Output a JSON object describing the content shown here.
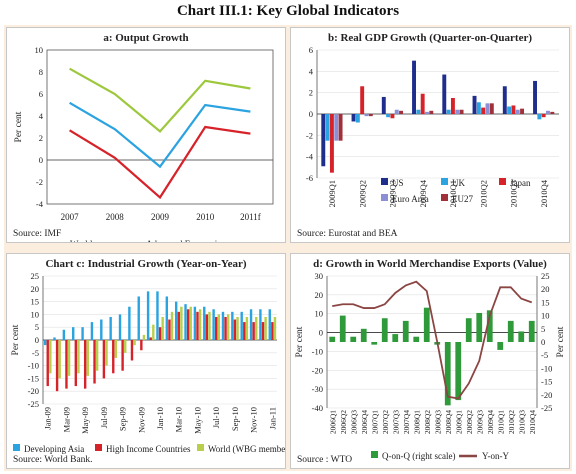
{
  "page_title": "Chart III.1: Key Global Indicators",
  "chart_data": [
    {
      "type": "line",
      "title": "a: Output Growth",
      "ylabel": "Per cent",
      "ylim": [
        -4,
        10
      ],
      "yticks": [
        -4,
        -2,
        0,
        2,
        4,
        6,
        8,
        10
      ],
      "categories": [
        "2007",
        "2008",
        "2009",
        "2010",
        "2011f"
      ],
      "series": [
        {
          "name": "World",
          "color": "#2aa3e0",
          "values": [
            5.2,
            2.8,
            -0.6,
            5.0,
            4.4
          ]
        },
        {
          "name": "Advanced Economies",
          "color": "#d6232a",
          "values": [
            2.7,
            0.2,
            -3.4,
            3.0,
            2.4
          ]
        },
        {
          "name": "Emerging and Developing Economies",
          "color": "#9dc83d",
          "values": [
            8.3,
            6.0,
            2.6,
            7.2,
            6.5
          ]
        }
      ],
      "source": "Source: IMF"
    },
    {
      "type": "bar",
      "title": "b: Real GDP Growth (Quarter-on-Quarter)",
      "ylim": [
        -6,
        6
      ],
      "yticks": [
        -6,
        -4,
        -2,
        0,
        2,
        4,
        6
      ],
      "categories": [
        "2009Q1",
        "2009Q2",
        "2009Q3",
        "2009Q4",
        "2010Q1",
        "2010Q2",
        "2010Q3",
        "2010Q4"
      ],
      "series": [
        {
          "name": "US",
          "color": "#1f2d8c",
          "values": [
            -4.9,
            -0.7,
            1.6,
            5.0,
            3.7,
            1.7,
            2.6,
            3.1
          ]
        },
        {
          "name": "UK",
          "color": "#2aa3e0",
          "values": [
            -2.5,
            -0.8,
            -0.3,
            0.4,
            0.4,
            1.1,
            0.7,
            -0.5
          ]
        },
        {
          "name": "Japan",
          "color": "#d6232a",
          "values": [
            -5.5,
            2.6,
            -0.4,
            1.9,
            1.5,
            0.6,
            0.8,
            -0.3
          ]
        },
        {
          "name": "Euro Area",
          "color": "#8c8fd6",
          "values": [
            -2.5,
            -0.2,
            0.4,
            0.2,
            0.4,
            1.0,
            0.4,
            0.3
          ]
        },
        {
          "name": "EU27",
          "color": "#a0303a",
          "values": [
            -2.5,
            -0.2,
            0.3,
            0.3,
            0.4,
            1.0,
            0.5,
            0.2
          ]
        }
      ],
      "source": "Source: Eurostat and BEA"
    },
    {
      "type": "bar",
      "title": "Chart c: Industrial Growth (Year-on-Year)",
      "ylabel": "Per cent",
      "ylim": [
        -25,
        25
      ],
      "yticks": [
        -25,
        -20,
        -15,
        -10,
        -5,
        0,
        5,
        10,
        15,
        20,
        25
      ],
      "categories": [
        "Jan-09",
        "Feb-09",
        "Mar-09",
        "Apr-09",
        "May-09",
        "Jun-09",
        "Jul-09",
        "Aug-09",
        "Sep-09",
        "Oct-09",
        "Nov-09",
        "Dec-09",
        "Jan-10",
        "Feb-10",
        "Mar-10",
        "Apr-10",
        "May-10",
        "Jun-10",
        "Jul-10",
        "Aug-10",
        "Sep-10",
        "Oct-10",
        "Nov-10",
        "Dec-10",
        "Jan-11"
      ],
      "tick_labels": [
        "Jan-09",
        "Mar-09",
        "May-09",
        "Jul-09",
        "Sep-09",
        "Nov-09",
        "Jan-10",
        "Mar-10",
        "May-10",
        "Jul-10",
        "Sep-10",
        "Nov-10",
        "Jan-11"
      ],
      "series": [
        {
          "name": "Developing Asia",
          "color": "#2aa3e0",
          "values": [
            -2,
            1,
            4,
            5,
            5,
            7,
            8,
            9,
            10,
            13,
            17,
            19,
            19,
            17,
            15,
            14,
            13,
            13,
            12,
            11,
            11,
            11,
            12,
            12,
            12
          ]
        },
        {
          "name": "High Income Countries",
          "color": "#d6232a",
          "values": [
            -18,
            -20,
            -19,
            -18,
            -19,
            -17,
            -15,
            -13,
            -12,
            -8,
            -4,
            1,
            5,
            8,
            11,
            12,
            11,
            10,
            9,
            9,
            8,
            7,
            7,
            7,
            7
          ]
        },
        {
          "name": "World (WBG members)",
          "color": "#b7cf4a",
          "values": [
            -13,
            -15,
            -14,
            -13,
            -14,
            -12,
            -10,
            -7,
            -5,
            -2,
            2,
            6,
            9,
            11,
            13,
            13,
            12,
            11,
            10,
            10,
            9,
            9,
            9,
            9,
            9
          ]
        }
      ],
      "source": "Source: World Bank."
    },
    {
      "type": "bar",
      "title": "d: Growth in World Merchandise Exports (Value)",
      "ylabel": "Per cent",
      "ylim": [
        -40,
        30
      ],
      "yticks": [
        -40,
        -30,
        -20,
        -10,
        0,
        10,
        20,
        30
      ],
      "right_ylim": [
        -25,
        25
      ],
      "right_yticks": [
        -25,
        -20,
        -15,
        -10,
        -5,
        0,
        5,
        10,
        15,
        20,
        25
      ],
      "categories": [
        "2006Q1",
        "2006Q2",
        "2006Q3",
        "2006Q4",
        "2007Q1",
        "2007Q2",
        "2007Q3",
        "2007Q4",
        "2008Q1",
        "2008Q2",
        "2008Q3",
        "2008Q4",
        "2009Q1",
        "2009Q2",
        "2009Q3",
        "2009Q4",
        "2010Q1",
        "2010Q2",
        "2010Q3",
        "2010Q4"
      ],
      "series": [
        {
          "name": "Q-on-Q (right scale)",
          "color": "#2e9a3a",
          "axis": "right",
          "values": [
            2,
            10,
            2,
            5,
            -1,
            9,
            3,
            8,
            2,
            13,
            -1,
            -24,
            -22,
            9,
            11,
            12,
            -3,
            8,
            4,
            8
          ]
        },
        {
          "name": "Y-on-Y",
          "color": "#8b4543",
          "axis": "left",
          "values": [
            14,
            15,
            15,
            13,
            13,
            15,
            21,
            25,
            27,
            22,
            -5,
            -34,
            -35,
            -27,
            -15,
            9,
            24,
            24,
            18,
            16
          ]
        }
      ],
      "source": "Source : WTO"
    }
  ]
}
